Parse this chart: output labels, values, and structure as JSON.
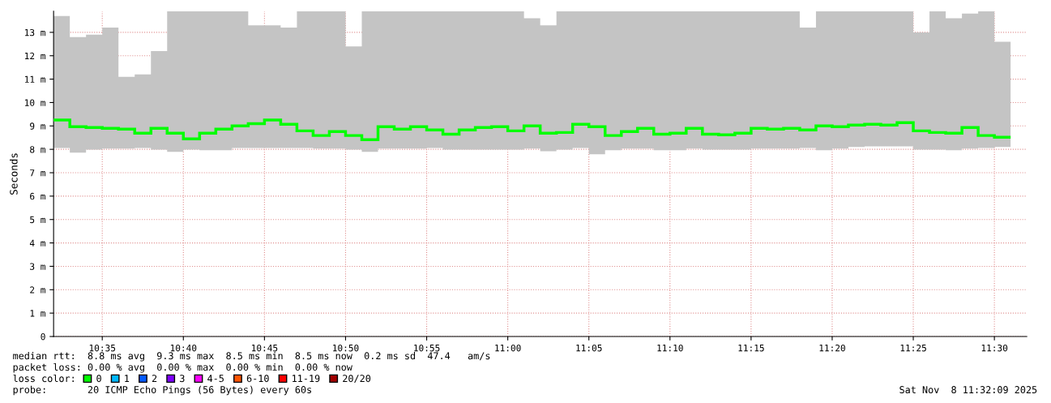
{
  "chart_data": {
    "type": "step",
    "ylabel": "Seconds",
    "x": [
      "2025-11-08T10:33",
      "2025-11-08T10:34",
      "2025-11-08T10:35",
      "2025-11-08T10:36",
      "2025-11-08T10:37",
      "2025-11-08T10:38",
      "2025-11-08T10:39",
      "2025-11-08T10:40",
      "2025-11-08T10:41",
      "2025-11-08T10:42",
      "2025-11-08T10:43",
      "2025-11-08T10:44",
      "2025-11-08T10:45",
      "2025-11-08T10:46",
      "2025-11-08T10:47",
      "2025-11-08T10:48",
      "2025-11-08T10:49",
      "2025-11-08T10:50",
      "2025-11-08T10:51",
      "2025-11-08T10:52",
      "2025-11-08T10:53",
      "2025-11-08T10:54",
      "2025-11-08T10:55",
      "2025-11-08T10:56",
      "2025-11-08T10:57",
      "2025-11-08T10:58",
      "2025-11-08T10:59",
      "2025-11-08T11:00",
      "2025-11-08T11:01",
      "2025-11-08T11:02",
      "2025-11-08T11:03",
      "2025-11-08T11:04",
      "2025-11-08T11:05",
      "2025-11-08T11:06",
      "2025-11-08T11:07",
      "2025-11-08T11:08",
      "2025-11-08T11:09",
      "2025-11-08T11:10",
      "2025-11-08T11:11",
      "2025-11-08T11:12",
      "2025-11-08T11:13",
      "2025-11-08T11:14",
      "2025-11-08T11:15",
      "2025-11-08T11:16",
      "2025-11-08T11:17",
      "2025-11-08T11:18",
      "2025-11-08T11:19",
      "2025-11-08T11:20",
      "2025-11-08T11:21",
      "2025-11-08T11:22",
      "2025-11-08T11:23",
      "2025-11-08T11:24",
      "2025-11-08T11:25",
      "2025-11-08T11:26",
      "2025-11-08T11:27",
      "2025-11-08T11:28",
      "2025-11-08T11:29",
      "2025-11-08T11:30",
      "2025-11-08T11:31"
    ],
    "series": [
      {
        "name": "0",
        "color": "#00ff00",
        "values": [
          9.25,
          8.97,
          8.93,
          8.9,
          8.86,
          8.69,
          8.9,
          8.69,
          8.45,
          8.69,
          8.86,
          9.0,
          9.1,
          9.25,
          9.07,
          8.79,
          8.59,
          8.76,
          8.59,
          8.41,
          8.97,
          8.86,
          8.97,
          8.83,
          8.65,
          8.83,
          8.93,
          8.97,
          8.79,
          9.0,
          8.69,
          8.72,
          9.07,
          8.97,
          8.59,
          8.76,
          8.9,
          8.65,
          8.69,
          8.9,
          8.65,
          8.62,
          8.69,
          8.9,
          8.86,
          8.9,
          8.83,
          9.0,
          8.97,
          9.04,
          9.07,
          9.04,
          9.14,
          8.79,
          8.72,
          8.69,
          8.93,
          8.59,
          8.52
        ],
        "lower": [
          8.06,
          7.86,
          7.99,
          8.03,
          8.03,
          8.06,
          7.99,
          7.89,
          7.99,
          7.96,
          7.96,
          8.06,
          8.06,
          8.06,
          8.06,
          8.06,
          8.03,
          8.03,
          7.99,
          7.89,
          8.03,
          8.03,
          8.03,
          8.06,
          7.99,
          7.99,
          7.99,
          7.99,
          7.99,
          8.03,
          7.92,
          7.99,
          8.06,
          7.79,
          7.96,
          8.03,
          8.03,
          7.96,
          7.96,
          8.03,
          7.99,
          7.99,
          7.99,
          8.03,
          8.03,
          8.03,
          8.06,
          7.96,
          8.03,
          8.1,
          8.13,
          8.13,
          8.13,
          7.99,
          7.99,
          7.96,
          8.03,
          8.06,
          8.1
        ],
        "upper": [
          13.7,
          12.8,
          12.9,
          13.2,
          11.1,
          11.2,
          12.2,
          13.9,
          13.9,
          13.9,
          13.9,
          13.9,
          13.3,
          13.3,
          13.2,
          13.9,
          13.9,
          13.9,
          12.4,
          13.9,
          13.9,
          13.9,
          13.9,
          13.9,
          13.9,
          13.9,
          13.9,
          13.9,
          13.9,
          13.6,
          13.3,
          13.9,
          13.9,
          13.9,
          13.9,
          13.9,
          13.9,
          13.9,
          13.9,
          13.9,
          13.9,
          13.9,
          13.9,
          13.9,
          13.9,
          13.9,
          13.2,
          13.9,
          13.9,
          13.9,
          13.9,
          13.9,
          13.9,
          13.0,
          13.9,
          13.6,
          13.8,
          13.9,
          12.6
        ]
      },
      {
        "name": "1",
        "color": "#00b8ff",
        "values": [
          null,
          null,
          null,
          null,
          null,
          null,
          null,
          null,
          null,
          null,
          null,
          null,
          null,
          null,
          null,
          null,
          null,
          null,
          null,
          null,
          null,
          null,
          null,
          null,
          null,
          null,
          null,
          null,
          null,
          null,
          null,
          null,
          null,
          null,
          null,
          null,
          null,
          null,
          null,
          null,
          null,
          null,
          null,
          null,
          null,
          null,
          null,
          null,
          null,
          null,
          null,
          null,
          null,
          null,
          null,
          null,
          null,
          null,
          null
        ]
      },
      {
        "name": "2",
        "color": "#0059ff",
        "values": [
          null,
          null,
          null,
          null,
          null,
          null,
          null,
          null,
          null,
          null,
          null,
          null,
          null,
          null,
          null,
          null,
          null,
          null,
          null,
          null,
          null,
          null,
          null,
          null,
          null,
          null,
          null,
          null,
          null,
          null,
          null,
          null,
          null,
          null,
          null,
          null,
          null,
          null,
          null,
          null,
          null,
          null,
          null,
          null,
          null,
          null,
          null,
          null,
          null,
          null,
          null,
          null,
          null,
          null,
          null,
          null,
          null,
          null,
          null
        ]
      },
      {
        "name": "3",
        "color": "#7e00ff",
        "values": [
          null,
          null,
          null,
          null,
          null,
          null,
          null,
          null,
          null,
          null,
          null,
          null,
          null,
          null,
          null,
          null,
          null,
          null,
          null,
          null,
          null,
          null,
          null,
          null,
          null,
          null,
          null,
          null,
          null,
          null,
          null,
          null,
          null,
          null,
          null,
          null,
          null,
          null,
          null,
          null,
          null,
          null,
          null,
          null,
          null,
          null,
          null,
          null,
          null,
          null,
          null,
          null,
          null,
          null,
          null,
          null,
          null,
          null,
          null
        ]
      },
      {
        "name": "4-5",
        "color": "#ff00ff",
        "values": [
          null,
          null,
          null,
          null,
          null,
          null,
          null,
          null,
          null,
          null,
          null,
          null,
          null,
          null,
          null,
          null,
          null,
          null,
          null,
          null,
          null,
          null,
          null,
          null,
          null,
          null,
          null,
          null,
          null,
          null,
          null,
          null,
          null,
          null,
          null,
          null,
          null,
          null,
          null,
          null,
          null,
          null,
          null,
          null,
          null,
          null,
          null,
          null,
          null,
          null,
          null,
          null,
          null,
          null,
          null,
          null,
          null,
          null,
          null
        ]
      },
      {
        "name": "6-10",
        "color": "#ff5500",
        "values": [
          null,
          null,
          null,
          null,
          null,
          null,
          null,
          null,
          null,
          null,
          null,
          null,
          null,
          null,
          null,
          null,
          null,
          null,
          null,
          null,
          null,
          null,
          null,
          null,
          null,
          null,
          null,
          null,
          null,
          null,
          null,
          null,
          null,
          null,
          null,
          null,
          null,
          null,
          null,
          null,
          null,
          null,
          null,
          null,
          null,
          null,
          null,
          null,
          null,
          null,
          null,
          null,
          null,
          null,
          null,
          null,
          null,
          null,
          null
        ]
      },
      {
        "name": "11-19",
        "color": "#ff0000",
        "values": [
          null,
          null,
          null,
          null,
          null,
          null,
          null,
          null,
          null,
          null,
          null,
          null,
          null,
          null,
          null,
          null,
          null,
          null,
          null,
          null,
          null,
          null,
          null,
          null,
          null,
          null,
          null,
          null,
          null,
          null,
          null,
          null,
          null,
          null,
          null,
          null,
          null,
          null,
          null,
          null,
          null,
          null,
          null,
          null,
          null,
          null,
          null,
          null,
          null,
          null,
          null,
          null,
          null,
          null,
          null,
          null,
          null,
          null,
          null
        ]
      },
      {
        "name": "20/20",
        "color": "#a10000",
        "values": [
          null,
          null,
          null,
          null,
          null,
          null,
          null,
          null,
          null,
          null,
          null,
          null,
          null,
          null,
          null,
          null,
          null,
          null,
          null,
          null,
          null,
          null,
          null,
          null,
          null,
          null,
          null,
          null,
          null,
          null,
          null,
          null,
          null,
          null,
          null,
          null,
          null,
          null,
          null,
          null,
          null,
          null,
          null,
          null,
          null,
          null,
          null,
          null,
          null,
          null,
          null,
          null,
          null,
          null,
          null,
          null,
          null,
          null,
          null
        ]
      }
    ],
    "legend": "bottom",
    "legend_title": "loss color:",
    "xlim": [
      "2025-11-08T10:32",
      "2025-11-08T11:32"
    ],
    "xticks": [
      {
        "value": "2025-11-08T10:35",
        "label": "10:35"
      },
      {
        "value": "2025-11-08T10:40",
        "label": "10:40"
      },
      {
        "value": "2025-11-08T10:45",
        "label": "10:45"
      },
      {
        "value": "2025-11-08T10:50",
        "label": "10:50"
      },
      {
        "value": "2025-11-08T10:55",
        "label": "10:55"
      },
      {
        "value": "2025-11-08T11:00",
        "label": "11:00"
      },
      {
        "value": "2025-11-08T11:05",
        "label": "11:05"
      },
      {
        "value": "2025-11-08T11:10",
        "label": "11:10"
      },
      {
        "value": "2025-11-08T11:15",
        "label": "11:15"
      },
      {
        "value": "2025-11-08T11:20",
        "label": "11:20"
      },
      {
        "value": "2025-11-08T11:25",
        "label": "11:25"
      },
      {
        "value": "2025-11-08T11:30",
        "label": "11:30"
      }
    ],
    "ylim": [
      0,
      13.9
    ],
    "yticks": [
      0,
      {
        "value": 1,
        "label": "1 m"
      },
      {
        "value": 2,
        "label": "2 m"
      },
      {
        "value": 3,
        "label": "3 m"
      },
      {
        "value": 4,
        "label": "4 m"
      },
      {
        "value": 5,
        "label": "5 m"
      },
      {
        "value": 6,
        "label": "6 m"
      },
      {
        "value": 7,
        "label": "7 m"
      },
      {
        "value": 8,
        "label": "8 m"
      },
      {
        "value": 9,
        "label": "9 m"
      },
      {
        "value": 10,
        "label": "10 m"
      },
      {
        "value": 11,
        "label": "11 m"
      },
      {
        "value": 12,
        "label": "12 m"
      },
      {
        "value": 13,
        "label": "13 m"
      }
    ],
    "grid": true,
    "annotations": [
      "median rtt:  8.8 ms avg  9.3 ms max  8.5 ms min  8.5 ms now  0.2 ms sd  47.4   am/s",
      "packet loss: 0.00 % avg  0.00 % max  0.00 % min  0.00 % now",
      "probe:       20 ICMP Echo Pings (56 Bytes) every 60s",
      "Sat Nov  8 11:32:09 2025"
    ]
  }
}
